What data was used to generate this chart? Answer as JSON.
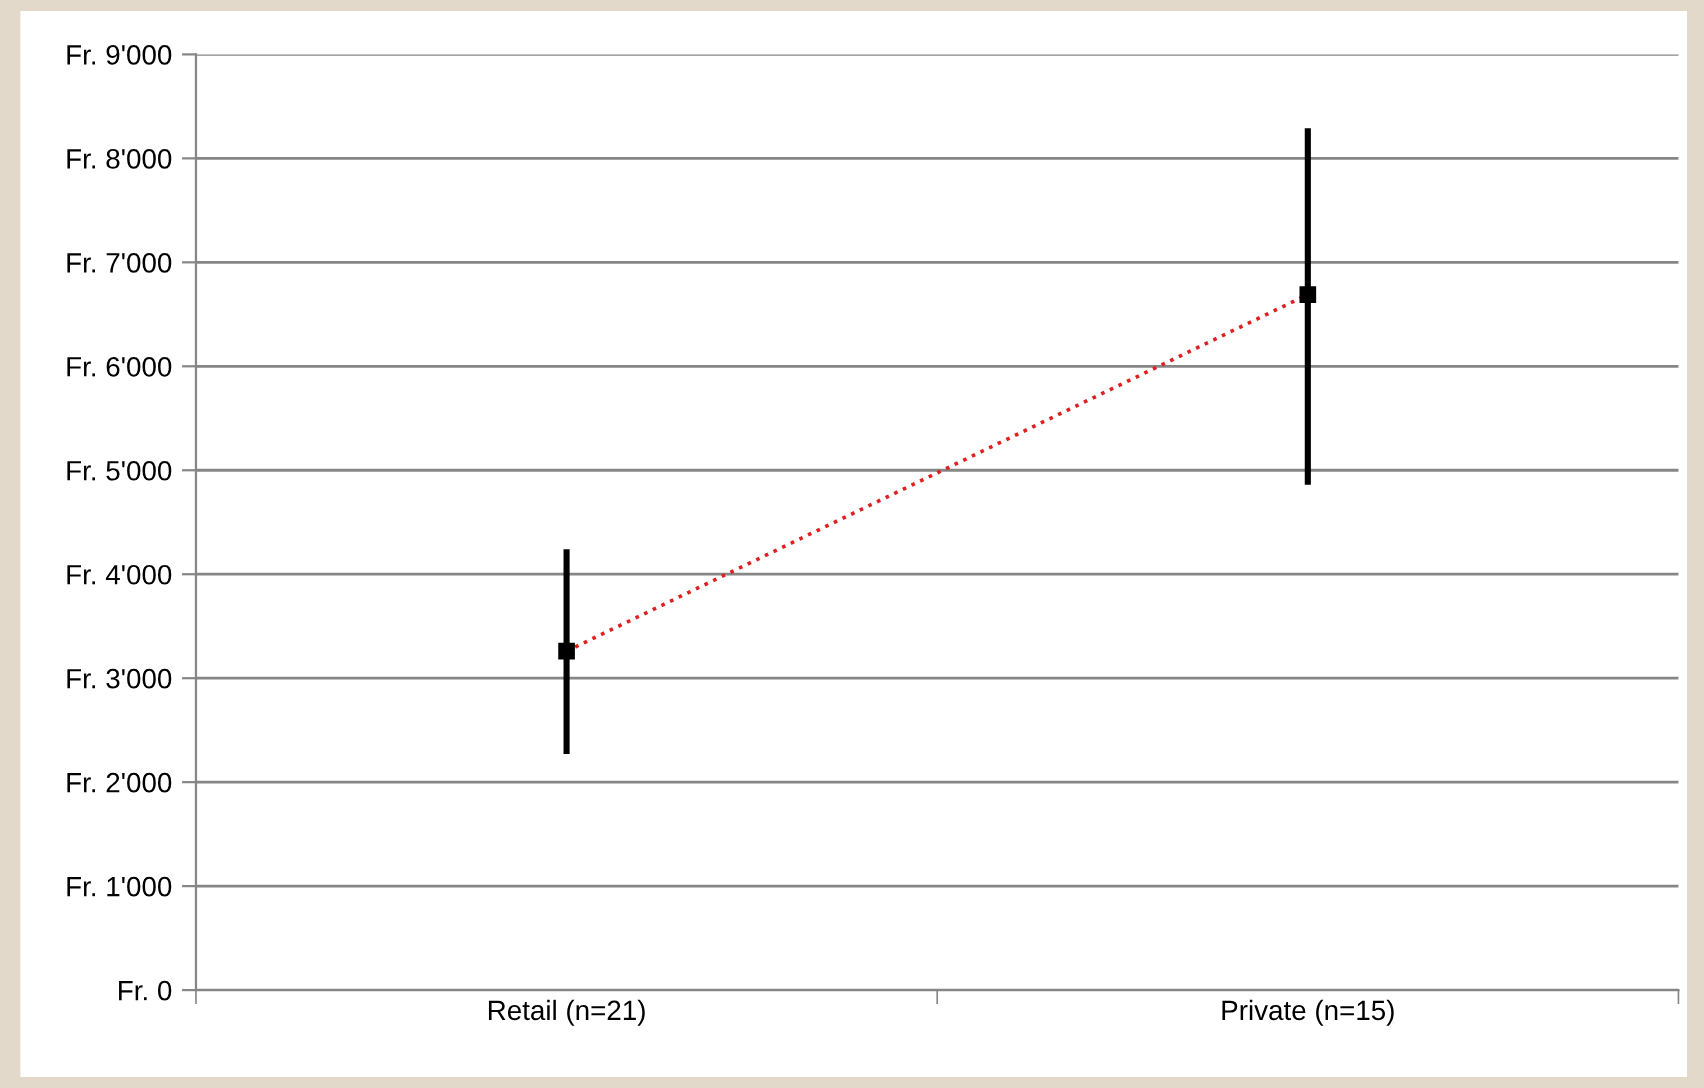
{
  "chart_data": {
    "type": "line",
    "categories": [
      "Retail (n=21)",
      "Private (n=15)"
    ],
    "series": [
      {
        "color": "#e02020",
        "values": [
          3260,
          6690
        ],
        "errors": [
          [
            2270,
            4240
          ],
          [
            4860,
            8290
          ]
        ]
      }
    ],
    "marker": "square",
    "line_style": "dotted",
    "grid": "y",
    "legend": false,
    "ylim": [
      0,
      9000
    ],
    "yticks": [
      {
        "value": 0,
        "label": "Fr. 0"
      },
      {
        "value": 1000,
        "label": "Fr. 1'000"
      },
      {
        "value": 2000,
        "label": "Fr. 2'000"
      },
      {
        "value": 3000,
        "label": "Fr. 3'000"
      },
      {
        "value": 4000,
        "label": "Fr. 4'000"
      },
      {
        "value": 5000,
        "label": "Fr. 5'000"
      },
      {
        "value": 6000,
        "label": "Fr. 6'000"
      },
      {
        "value": 7000,
        "label": "Fr. 7'000"
      },
      {
        "value": 8000,
        "label": "Fr. 8'000"
      },
      {
        "value": 9000,
        "label": "Fr. 9'000"
      }
    ]
  }
}
